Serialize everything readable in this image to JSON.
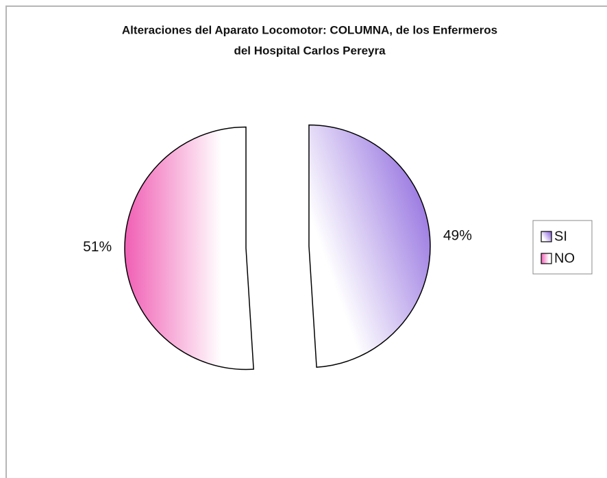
{
  "chart_data": {
    "type": "pie",
    "title": [
      "Alteraciones del Aparato Locomotor: COLUMNA, de los Enfermeros",
      "del  Hospital Carlos Pereyra"
    ],
    "categories": [
      "SI",
      "NO"
    ],
    "values": [
      49,
      51
    ],
    "value_labels": [
      "49%",
      "51%"
    ],
    "colors": [
      "#9673e0",
      "#f05fb4"
    ],
    "legend": "right"
  }
}
